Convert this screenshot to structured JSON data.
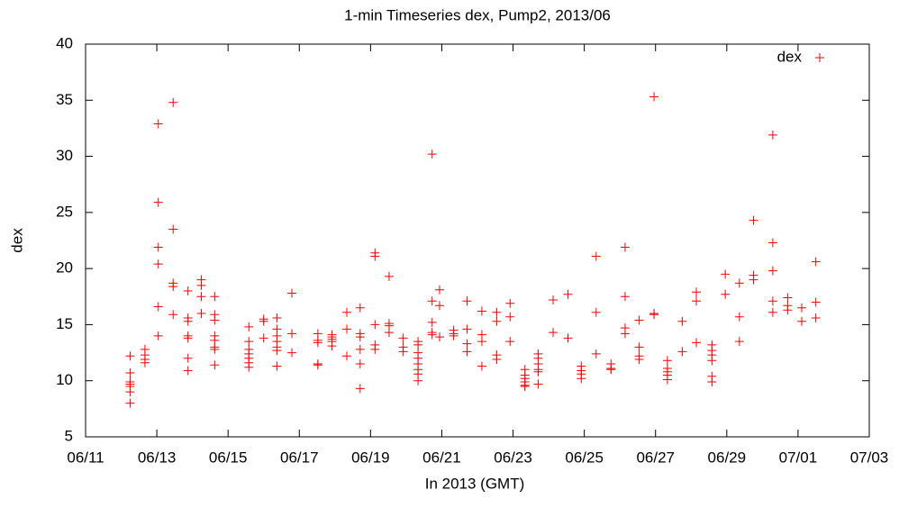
{
  "chart_data": {
    "type": "scatter",
    "title": "1-min Timeseries dex, Pump2, 2013/06",
    "x_label": "In 2013 (GMT)",
    "y_label": "dex",
    "legend": "top-right",
    "grid": false,
    "xlim": [
      "2013-06-11",
      "2013-07-03"
    ],
    "xticks": [
      {
        "value": "2013-06-11",
        "label": "06/11"
      },
      {
        "value": "2013-06-13",
        "label": "06/13"
      },
      {
        "value": "2013-06-15",
        "label": "06/15"
      },
      {
        "value": "2013-06-17",
        "label": "06/17"
      },
      {
        "value": "2013-06-19",
        "label": "06/19"
      },
      {
        "value": "2013-06-21",
        "label": "06/21"
      },
      {
        "value": "2013-06-23",
        "label": "06/23"
      },
      {
        "value": "2013-06-25",
        "label": "06/25"
      },
      {
        "value": "2013-06-27",
        "label": "06/27"
      },
      {
        "value": "2013-06-29",
        "label": "06/29"
      },
      {
        "value": "2013-07-01",
        "label": "07/01"
      },
      {
        "value": "2013-07-03",
        "label": "07/03"
      }
    ],
    "ylim": [
      5,
      40
    ],
    "yticks": [
      5,
      10,
      15,
      20,
      25,
      30,
      35,
      40
    ],
    "series": [
      {
        "name": "dex",
        "color": "#ff0000",
        "x": [
          "2013-06-12T06:00",
          "2013-06-12T06:00",
          "2013-06-12T06:00",
          "2013-06-12T06:00",
          "2013-06-12T06:00",
          "2013-06-12T06:00",
          "2013-06-12T06:00",
          "2013-06-12T16:00",
          "2013-06-12T16:00",
          "2013-06-12T16:00",
          "2013-06-12T16:00",
          "2013-06-13T01:00",
          "2013-06-13T01:00",
          "2013-06-13T01:00",
          "2013-06-13T01:00",
          "2013-06-13T01:00",
          "2013-06-13T01:00",
          "2013-06-13T11:00",
          "2013-06-13T11:00",
          "2013-06-13T11:00",
          "2013-06-13T11:00",
          "2013-06-13T11:00",
          "2013-06-13T21:00",
          "2013-06-13T21:00",
          "2013-06-13T21:00",
          "2013-06-13T21:00",
          "2013-06-13T21:00",
          "2013-06-13T21:00",
          "2013-06-13T21:00",
          "2013-06-14T06:00",
          "2013-06-14T06:00",
          "2013-06-14T06:00",
          "2013-06-14T06:00",
          "2013-06-14T15:00",
          "2013-06-14T15:00",
          "2013-06-14T15:00",
          "2013-06-14T15:00",
          "2013-06-14T15:00",
          "2013-06-14T15:00",
          "2013-06-14T15:00",
          "2013-06-14T15:00",
          "2013-06-15T14:00",
          "2013-06-15T14:00",
          "2013-06-15T14:00",
          "2013-06-15T14:00",
          "2013-06-15T14:00",
          "2013-06-15T14:00",
          "2013-06-15T14:00",
          "2013-06-16T00:00",
          "2013-06-16T00:00",
          "2013-06-16T00:00",
          "2013-06-16T09:00",
          "2013-06-16T09:00",
          "2013-06-16T09:00",
          "2013-06-16T09:00",
          "2013-06-16T09:00",
          "2013-06-16T09:00",
          "2013-06-16T09:00",
          "2013-06-16T19:00",
          "2013-06-16T19:00",
          "2013-06-16T19:00",
          "2013-06-17T12:30",
          "2013-06-17T12:30",
          "2013-06-17T12:30",
          "2013-06-17T12:30",
          "2013-06-17T12:30",
          "2013-06-17T22:00",
          "2013-06-17T22:00",
          "2013-06-17T22:00",
          "2013-06-17T22:00",
          "2013-06-17T22:00",
          "2013-06-18T08:00",
          "2013-06-18T08:00",
          "2013-06-18T08:00",
          "2013-06-18T17:00",
          "2013-06-18T17:00",
          "2013-06-18T17:00",
          "2013-06-18T17:00",
          "2013-06-18T17:00",
          "2013-06-18T17:00",
          "2013-06-19T03:00",
          "2013-06-19T03:00",
          "2013-06-19T03:00",
          "2013-06-19T03:00",
          "2013-06-19T03:00",
          "2013-06-19T12:30",
          "2013-06-19T12:30",
          "2013-06-19T12:30",
          "2013-06-19T12:30",
          "2013-06-19T22:00",
          "2013-06-19T22:00",
          "2013-06-19T22:00",
          "2013-06-20T08:00",
          "2013-06-20T08:00",
          "2013-06-20T08:00",
          "2013-06-20T08:00",
          "2013-06-20T08:00",
          "2013-06-20T08:00",
          "2013-06-20T08:00",
          "2013-06-20T08:00",
          "2013-06-20T17:30",
          "2013-06-20T17:30",
          "2013-06-20T17:30",
          "2013-06-20T17:30",
          "2013-06-20T17:30",
          "2013-06-20T22:30",
          "2013-06-20T22:30",
          "2013-06-20T22:30",
          "2013-06-21T08:00",
          "2013-06-21T08:00",
          "2013-06-21T08:00",
          "2013-06-21T17:00",
          "2013-06-21T17:00",
          "2013-06-21T17:00",
          "2013-06-21T17:00",
          "2013-06-22T03:00",
          "2013-06-22T03:00",
          "2013-06-22T03:00",
          "2013-06-22T03:00",
          "2013-06-22T13:00",
          "2013-06-22T13:00",
          "2013-06-22T13:00",
          "2013-06-22T13:00",
          "2013-06-22T22:00",
          "2013-06-22T22:00",
          "2013-06-22T22:00",
          "2013-06-23T08:00",
          "2013-06-23T08:00",
          "2013-06-23T08:00",
          "2013-06-23T08:00",
          "2013-06-23T08:00",
          "2013-06-23T08:00",
          "2013-06-23T17:00",
          "2013-06-23T17:00",
          "2013-06-23T17:00",
          "2013-06-23T17:00",
          "2013-06-23T17:00",
          "2013-06-23T17:00",
          "2013-06-24T03:00",
          "2013-06-24T03:00",
          "2013-06-24T13:00",
          "2013-06-24T13:00",
          "2013-06-24T22:00",
          "2013-06-24T22:00",
          "2013-06-24T22:00",
          "2013-06-24T22:00",
          "2013-06-25T08:00",
          "2013-06-25T08:00",
          "2013-06-25T08:00",
          "2013-06-25T18:00",
          "2013-06-25T18:00",
          "2013-06-25T18:00",
          "2013-06-26T03:30",
          "2013-06-26T03:30",
          "2013-06-26T03:30",
          "2013-06-26T03:30",
          "2013-06-26T13:00",
          "2013-06-26T13:00",
          "2013-06-26T13:00",
          "2013-06-26T13:00",
          "2013-06-26T23:00",
          "2013-06-26T23:00",
          "2013-06-26T23:00",
          "2013-06-27T08:00",
          "2013-06-27T08:00",
          "2013-06-27T08:00",
          "2013-06-27T08:00",
          "2013-06-27T08:00",
          "2013-06-27T18:00",
          "2013-06-27T18:00",
          "2013-06-28T03:30",
          "2013-06-28T03:30",
          "2013-06-28T03:30",
          "2013-06-28T14:00",
          "2013-06-28T14:00",
          "2013-06-28T14:00",
          "2013-06-28T14:00",
          "2013-06-28T14:00",
          "2013-06-28T14:00",
          "2013-06-28T23:00",
          "2013-06-28T23:00",
          "2013-06-29T08:30",
          "2013-06-29T08:30",
          "2013-06-29T08:30",
          "2013-06-29T18:00",
          "2013-06-29T18:00",
          "2013-06-29T18:00",
          "2013-06-30T07:00",
          "2013-06-30T07:00",
          "2013-06-30T07:00",
          "2013-06-30T07:00",
          "2013-06-30T07:00",
          "2013-06-30T17:00",
          "2013-06-30T17:00",
          "2013-06-30T17:00",
          "2013-07-01T02:30",
          "2013-07-01T02:30",
          "2013-07-01T12:00",
          "2013-07-01T12:00",
          "2013-07-01T12:00"
        ],
        "values": [
          12.2,
          10.7,
          9.9,
          9.7,
          9.5,
          9.0,
          8.0,
          12.8,
          12.3,
          11.9,
          11.6,
          32.9,
          25.9,
          21.9,
          20.4,
          16.6,
          14.0,
          34.8,
          23.5,
          18.7,
          18.4,
          15.9,
          18.0,
          15.6,
          15.3,
          14.0,
          13.8,
          12.0,
          10.9,
          19.0,
          18.5,
          17.5,
          16.0,
          17.5,
          15.9,
          15.4,
          14.0,
          13.6,
          13.0,
          12.8,
          11.4,
          14.8,
          13.5,
          12.8,
          12.4,
          12.0,
          11.6,
          11.2,
          15.5,
          15.3,
          13.8,
          15.6,
          14.6,
          14.0,
          13.5,
          13.0,
          12.7,
          11.3,
          17.8,
          14.2,
          12.5,
          14.2,
          13.6,
          13.4,
          11.5,
          11.4,
          14.1,
          13.9,
          13.7,
          13.5,
          13.1,
          16.1,
          14.6,
          12.2,
          16.5,
          14.2,
          13.9,
          12.8,
          11.5,
          9.3,
          21.4,
          21.1,
          15.0,
          13.2,
          12.8,
          19.3,
          15.1,
          14.9,
          14.3,
          13.8,
          13.0,
          12.6,
          13.5,
          13.2,
          12.5,
          12.0,
          11.5,
          11.0,
          10.6,
          10.0,
          30.2,
          17.1,
          15.2,
          14.3,
          14.1,
          18.1,
          16.7,
          13.9,
          14.5,
          14.2,
          14.0,
          17.1,
          14.6,
          13.3,
          12.6,
          16.2,
          14.1,
          13.5,
          11.3,
          16.1,
          15.3,
          12.3,
          11.9,
          16.9,
          15.7,
          13.5,
          11.0,
          10.5,
          10.2,
          9.9,
          9.6,
          9.5,
          12.4,
          12.0,
          11.5,
          11.0,
          10.8,
          9.7,
          17.2,
          14.3,
          17.7,
          13.8,
          11.3,
          10.9,
          10.6,
          10.2,
          21.1,
          16.1,
          12.4,
          11.5,
          11.1,
          11.0,
          21.9,
          17.5,
          14.7,
          14.2,
          15.4,
          13.0,
          12.2,
          11.9,
          35.3,
          16.0,
          15.9,
          11.8,
          11.1,
          10.8,
          10.5,
          10.1,
          15.3,
          12.6,
          17.9,
          17.1,
          13.4,
          13.2,
          12.7,
          12.3,
          11.8,
          10.4,
          9.9,
          19.5,
          17.7,
          18.7,
          15.7,
          13.5,
          24.3,
          19.4,
          19.0,
          31.9,
          22.3,
          19.8,
          17.1,
          16.1,
          17.4,
          16.7,
          16.3,
          16.5,
          15.3,
          20.6,
          17.0,
          15.6
        ]
      }
    ]
  }
}
